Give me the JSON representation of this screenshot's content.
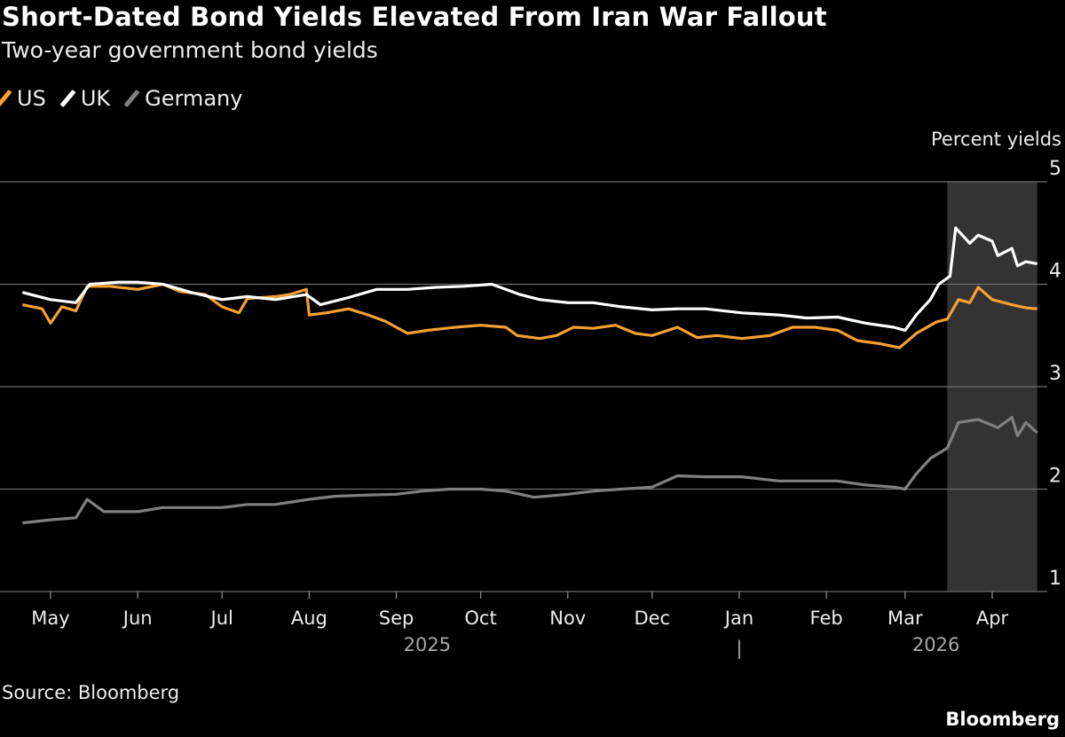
{
  "chart_data": {
    "type": "line",
    "title": "Short-Dated Bond Yields Elevated From Iran War Fallout",
    "subtitle": "Two-year government bond yields",
    "ylabel": "Percent yields",
    "ylim": [
      1,
      5
    ],
    "yticks": [
      "1",
      "2",
      "3",
      "4",
      "5"
    ],
    "xlim": [
      "2025-04-21",
      "2026-04-17"
    ],
    "xticks": [
      {
        "label": "May",
        "date": "2025-05-01"
      },
      {
        "label": "Jun",
        "date": "2025-06-01"
      },
      {
        "label": "Jul",
        "date": "2025-07-01"
      },
      {
        "label": "Aug",
        "date": "2025-08-01"
      },
      {
        "label": "Sep",
        "date": "2025-09-01"
      },
      {
        "label": "Oct",
        "date": "2025-10-01"
      },
      {
        "label": "Nov",
        "date": "2025-11-01"
      },
      {
        "label": "Dec",
        "date": "2025-12-01"
      },
      {
        "label": "Jan",
        "date": "2026-01-01"
      },
      {
        "label": "Feb",
        "date": "2026-02-01"
      },
      {
        "label": "Mar",
        "date": "2026-03-01"
      },
      {
        "label": "Apr",
        "date": "2026-04-01"
      }
    ],
    "year_labels": [
      {
        "label": "2025",
        "date": "2025-09-12"
      },
      {
        "label": "2026",
        "date": "2026-03-12"
      }
    ],
    "year_separator": {
      "label": "|",
      "date": "2026-01-01"
    },
    "shaded_region": {
      "start": "2026-03-16",
      "end": "2026-04-17",
      "color": "#333333"
    },
    "grid": true,
    "legend_position": "top-left",
    "series": [
      {
        "name": "US",
        "color": "#f5a033",
        "points": [
          [
            "2025-04-21",
            3.8
          ],
          [
            "2025-04-28",
            3.76
          ],
          [
            "2025-05-01",
            3.62
          ],
          [
            "2025-05-05",
            3.78
          ],
          [
            "2025-05-10",
            3.74
          ],
          [
            "2025-05-14",
            3.98
          ],
          [
            "2025-05-22",
            3.98
          ],
          [
            "2025-06-01",
            3.95
          ],
          [
            "2025-06-10",
            4.0
          ],
          [
            "2025-06-16",
            3.93
          ],
          [
            "2025-06-25",
            3.9
          ],
          [
            "2025-07-01",
            3.78
          ],
          [
            "2025-07-07",
            3.72
          ],
          [
            "2025-07-10",
            3.86
          ],
          [
            "2025-07-20",
            3.88
          ],
          [
            "2025-07-25",
            3.9
          ],
          [
            "2025-07-31",
            3.95
          ],
          [
            "2025-08-01",
            3.7
          ],
          [
            "2025-08-07",
            3.72
          ],
          [
            "2025-08-15",
            3.76
          ],
          [
            "2025-08-22",
            3.7
          ],
          [
            "2025-08-28",
            3.64
          ],
          [
            "2025-09-05",
            3.52
          ],
          [
            "2025-09-12",
            3.55
          ],
          [
            "2025-09-22",
            3.58
          ],
          [
            "2025-10-01",
            3.6
          ],
          [
            "2025-10-10",
            3.58
          ],
          [
            "2025-10-14",
            3.5
          ],
          [
            "2025-10-22",
            3.47
          ],
          [
            "2025-10-28",
            3.5
          ],
          [
            "2025-11-03",
            3.58
          ],
          [
            "2025-11-10",
            3.57
          ],
          [
            "2025-11-18",
            3.6
          ],
          [
            "2025-11-25",
            3.52
          ],
          [
            "2025-12-01",
            3.5
          ],
          [
            "2025-12-10",
            3.58
          ],
          [
            "2025-12-17",
            3.48
          ],
          [
            "2025-12-24",
            3.5
          ],
          [
            "2026-01-02",
            3.47
          ],
          [
            "2026-01-12",
            3.5
          ],
          [
            "2026-01-20",
            3.58
          ],
          [
            "2026-01-28",
            3.58
          ],
          [
            "2026-02-05",
            3.55
          ],
          [
            "2026-02-12",
            3.45
          ],
          [
            "2026-02-20",
            3.42
          ],
          [
            "2026-02-27",
            3.38
          ],
          [
            "2026-03-05",
            3.52
          ],
          [
            "2026-03-12",
            3.63
          ],
          [
            "2026-03-16",
            3.66
          ],
          [
            "2026-03-20",
            3.85
          ],
          [
            "2026-03-24",
            3.82
          ],
          [
            "2026-03-27",
            3.97
          ],
          [
            "2026-04-01",
            3.85
          ],
          [
            "2026-04-08",
            3.8
          ],
          [
            "2026-04-13",
            3.77
          ],
          [
            "2026-04-17",
            3.76
          ]
        ]
      },
      {
        "name": "UK",
        "color": "#ffffff",
        "points": [
          [
            "2025-04-21",
            3.92
          ],
          [
            "2025-05-01",
            3.85
          ],
          [
            "2025-05-10",
            3.82
          ],
          [
            "2025-05-15",
            4.0
          ],
          [
            "2025-05-25",
            4.02
          ],
          [
            "2025-06-01",
            4.02
          ],
          [
            "2025-06-10",
            4.0
          ],
          [
            "2025-06-20",
            3.92
          ],
          [
            "2025-07-01",
            3.85
          ],
          [
            "2025-07-10",
            3.88
          ],
          [
            "2025-07-20",
            3.85
          ],
          [
            "2025-07-31",
            3.9
          ],
          [
            "2025-08-05",
            3.8
          ],
          [
            "2025-08-15",
            3.87
          ],
          [
            "2025-08-25",
            3.95
          ],
          [
            "2025-09-05",
            3.95
          ],
          [
            "2025-09-15",
            3.97
          ],
          [
            "2025-09-25",
            3.98
          ],
          [
            "2025-10-05",
            4.0
          ],
          [
            "2025-10-15",
            3.9
          ],
          [
            "2025-10-22",
            3.85
          ],
          [
            "2025-11-01",
            3.82
          ],
          [
            "2025-11-10",
            3.82
          ],
          [
            "2025-11-20",
            3.78
          ],
          [
            "2025-12-01",
            3.75
          ],
          [
            "2025-12-10",
            3.76
          ],
          [
            "2025-12-20",
            3.76
          ],
          [
            "2026-01-02",
            3.72
          ],
          [
            "2026-01-15",
            3.7
          ],
          [
            "2026-01-25",
            3.67
          ],
          [
            "2026-02-05",
            3.68
          ],
          [
            "2026-02-15",
            3.62
          ],
          [
            "2026-02-25",
            3.58
          ],
          [
            "2026-03-01",
            3.55
          ],
          [
            "2026-03-05",
            3.7
          ],
          [
            "2026-03-10",
            3.85
          ],
          [
            "2026-03-13",
            4.0
          ],
          [
            "2026-03-17",
            4.08
          ],
          [
            "2026-03-19",
            4.55
          ],
          [
            "2026-03-24",
            4.4
          ],
          [
            "2026-03-27",
            4.48
          ],
          [
            "2026-04-01",
            4.42
          ],
          [
            "2026-04-03",
            4.28
          ],
          [
            "2026-04-08",
            4.35
          ],
          [
            "2026-04-10",
            4.18
          ],
          [
            "2026-04-13",
            4.22
          ],
          [
            "2026-04-17",
            4.2
          ]
        ]
      },
      {
        "name": "Germany",
        "color": "#808080",
        "points": [
          [
            "2025-04-21",
            1.67
          ],
          [
            "2025-05-01",
            1.7
          ],
          [
            "2025-05-10",
            1.72
          ],
          [
            "2025-05-14",
            1.9
          ],
          [
            "2025-05-20",
            1.78
          ],
          [
            "2025-06-01",
            1.78
          ],
          [
            "2025-06-10",
            1.82
          ],
          [
            "2025-06-20",
            1.82
          ],
          [
            "2025-07-01",
            1.82
          ],
          [
            "2025-07-10",
            1.85
          ],
          [
            "2025-07-20",
            1.85
          ],
          [
            "2025-08-01",
            1.9
          ],
          [
            "2025-08-10",
            1.93
          ],
          [
            "2025-08-20",
            1.94
          ],
          [
            "2025-09-01",
            1.95
          ],
          [
            "2025-09-10",
            1.98
          ],
          [
            "2025-09-20",
            2.0
          ],
          [
            "2025-10-01",
            2.0
          ],
          [
            "2025-10-10",
            1.98
          ],
          [
            "2025-10-20",
            1.92
          ],
          [
            "2025-11-01",
            1.95
          ],
          [
            "2025-11-10",
            1.98
          ],
          [
            "2025-11-20",
            2.0
          ],
          [
            "2025-12-01",
            2.02
          ],
          [
            "2025-12-10",
            2.13
          ],
          [
            "2025-12-20",
            2.12
          ],
          [
            "2026-01-02",
            2.12
          ],
          [
            "2026-01-15",
            2.08
          ],
          [
            "2026-01-25",
            2.08
          ],
          [
            "2026-02-05",
            2.08
          ],
          [
            "2026-02-15",
            2.04
          ],
          [
            "2026-02-25",
            2.02
          ],
          [
            "2026-03-01",
            2.0
          ],
          [
            "2026-03-05",
            2.15
          ],
          [
            "2026-03-10",
            2.3
          ],
          [
            "2026-03-16",
            2.4
          ],
          [
            "2026-03-20",
            2.65
          ],
          [
            "2026-03-27",
            2.68
          ],
          [
            "2026-04-03",
            2.6
          ],
          [
            "2026-04-08",
            2.7
          ],
          [
            "2026-04-10",
            2.52
          ],
          [
            "2026-04-13",
            2.65
          ],
          [
            "2026-04-17",
            2.55
          ]
        ]
      }
    ]
  },
  "source": "Source: Bloomberg",
  "logo": "Bloomberg"
}
